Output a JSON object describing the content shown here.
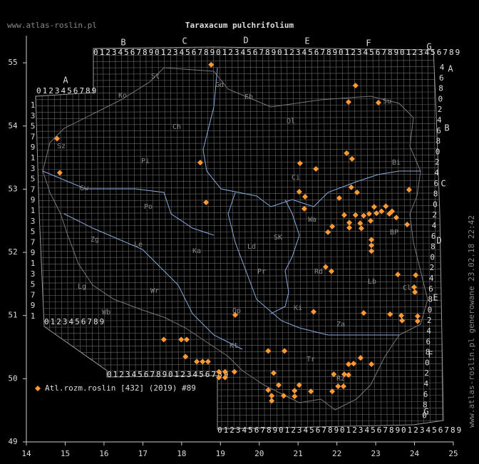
{
  "chart_data": {
    "type": "scatter",
    "title": "Taraxacum pulchrifolium",
    "site": "www.atlas-roslin.pl",
    "footnote": "www.atlas-roslin.pl generowane 23.02.18 22:42",
    "xlim": [
      14,
      25
    ],
    "ylim": [
      49,
      55.43
    ],
    "xticks": [
      14,
      15,
      16,
      17,
      18,
      19,
      20,
      21,
      22,
      23,
      24,
      25
    ],
    "yticks": [
      49,
      50,
      51,
      52,
      53,
      54,
      55
    ],
    "grid": {
      "digits": "0123456789",
      "top_letters": [
        "A",
        "B",
        "C",
        "D",
        "E",
        "F",
        "G"
      ],
      "right_letters": [
        "A",
        "B",
        "C",
        "D",
        "E",
        "F",
        "G"
      ],
      "side_digits": [
        "1",
        "3",
        "5",
        "7",
        "9"
      ],
      "right_digits": [
        "4",
        "6",
        "8",
        "0",
        "2"
      ]
    },
    "regions": [
      "St",
      "Gd",
      "Ko",
      "Eb",
      "Su",
      "Ch",
      "Ol",
      "Sz",
      "Pi",
      "Bi",
      "Ci",
      "Gw",
      "Po",
      "Zg",
      "Le",
      "Ka",
      "Ld",
      "SK",
      "Wa",
      "BP",
      "Pr",
      "Rd",
      "Lb",
      "Lg",
      "Wr",
      "Cl",
      "Wb",
      "Op",
      "Ki",
      "Za",
      "Kt",
      "Tr",
      "Rz"
    ],
    "series": [
      {
        "name": "Atl.rozm.roslin [432] (2019) #89",
        "color": "#ff9933",
        "x": [
          18.76,
          22.48,
          22.3,
          23.07,
          14.79,
          14.86,
          18.48,
          22.25,
          22.39,
          21.05,
          21.46,
          23.86,
          21.03,
          22.37,
          21.18,
          22.52,
          22.06,
          18.63,
          21.16,
          22.96,
          23.15,
          23.26,
          22.19,
          22.48,
          22.69,
          22.83,
          23.02,
          23.42,
          23.35,
          23.53,
          22.32,
          22.32,
          22.6,
          22.63,
          21.88,
          21.77,
          23.81,
          22.87,
          22.89,
          22.89,
          22.89,
          21.71,
          21.86,
          23.57,
          24.03,
          23.99,
          24.01,
          21.4,
          22.69,
          19.38,
          23.37,
          23.66,
          23.68,
          24.08,
          24.08,
          17.54,
          17.99,
          18.13,
          18.1,
          18.39,
          18.54,
          18.68,
          20.23,
          20.65,
          22.61,
          22.43,
          22.3,
          22.89,
          20.37,
          21.92,
          22.19,
          22.3,
          22.03,
          22.17,
          20.5,
          21.03,
          18.96,
          19.12,
          19.36,
          18.96,
          19.12,
          20.23,
          20.32,
          20.63,
          20.91,
          20.91,
          20.32,
          21.33,
          21.88
        ],
        "y": [
          54.97,
          54.64,
          54.38,
          54.37,
          53.8,
          53.26,
          53.42,
          53.57,
          53.48,
          53.41,
          53.32,
          52.99,
          52.96,
          53.03,
          52.88,
          52.95,
          52.86,
          52.79,
          52.69,
          52.72,
          52.65,
          52.73,
          52.59,
          52.59,
          52.58,
          52.61,
          52.62,
          52.65,
          52.61,
          52.55,
          52.47,
          52.39,
          52.46,
          52.38,
          52.41,
          52.32,
          52.44,
          52.5,
          52.2,
          52.11,
          52.02,
          51.77,
          51.7,
          51.65,
          51.64,
          51.45,
          51.37,
          51.06,
          51.04,
          51.01,
          51.02,
          51.0,
          50.92,
          50.99,
          50.91,
          50.62,
          50.62,
          50.62,
          50.35,
          50.27,
          50.27,
          50.27,
          50.44,
          50.44,
          50.33,
          50.24,
          50.23,
          50.23,
          50.09,
          50.07,
          50.07,
          50.06,
          49.88,
          49.88,
          49.9,
          49.9,
          50.11,
          50.11,
          50.11,
          50.02,
          50.02,
          49.82,
          49.73,
          49.73,
          49.81,
          49.72,
          49.65,
          49.8,
          49.8
        ]
      }
    ]
  }
}
